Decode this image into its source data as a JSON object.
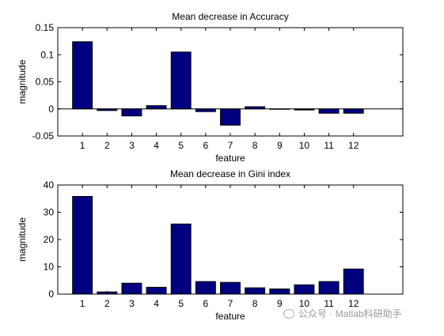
{
  "chart_data": [
    {
      "type": "bar",
      "title": "Mean decrease in Accuracy",
      "xlabel": "feature",
      "ylabel": "magnitude",
      "categories": [
        "1",
        "2",
        "3",
        "4",
        "5",
        "6",
        "7",
        "8",
        "9",
        "10",
        "11",
        "12"
      ],
      "values": [
        0.124,
        -0.003,
        -0.013,
        0.006,
        0.105,
        -0.005,
        -0.03,
        0.004,
        0.0,
        -0.002,
        -0.008,
        -0.008
      ],
      "xlim": [
        0,
        14
      ],
      "ylim": [
        -0.05,
        0.15
      ],
      "yticks": [
        "-0.05",
        "0",
        "0.05",
        "0.1",
        "0.15"
      ],
      "ytick_values": [
        -0.05,
        0,
        0.05,
        0.1,
        0.15
      ],
      "bar_color": "#000080"
    },
    {
      "type": "bar",
      "title": "Mean decrease in Gini index",
      "xlabel": "feature",
      "ylabel": "magnitude",
      "categories": [
        "1",
        "2",
        "3",
        "4",
        "5",
        "6",
        "7",
        "8",
        "9",
        "10",
        "11",
        "12"
      ],
      "values": [
        35.8,
        0.8,
        4.0,
        2.5,
        25.7,
        4.6,
        4.3,
        2.3,
        1.9,
        3.4,
        4.6,
        9.2
      ],
      "xlim": [
        0,
        14
      ],
      "ylim": [
        0,
        40
      ],
      "yticks": [
        "0",
        "10",
        "20",
        "30",
        "40"
      ],
      "ytick_values": [
        0,
        10,
        20,
        30,
        40
      ],
      "bar_color": "#000080"
    }
  ],
  "watermark": {
    "text": "公众号 · Matlab科研助手",
    "icon": "wechat-icon"
  }
}
